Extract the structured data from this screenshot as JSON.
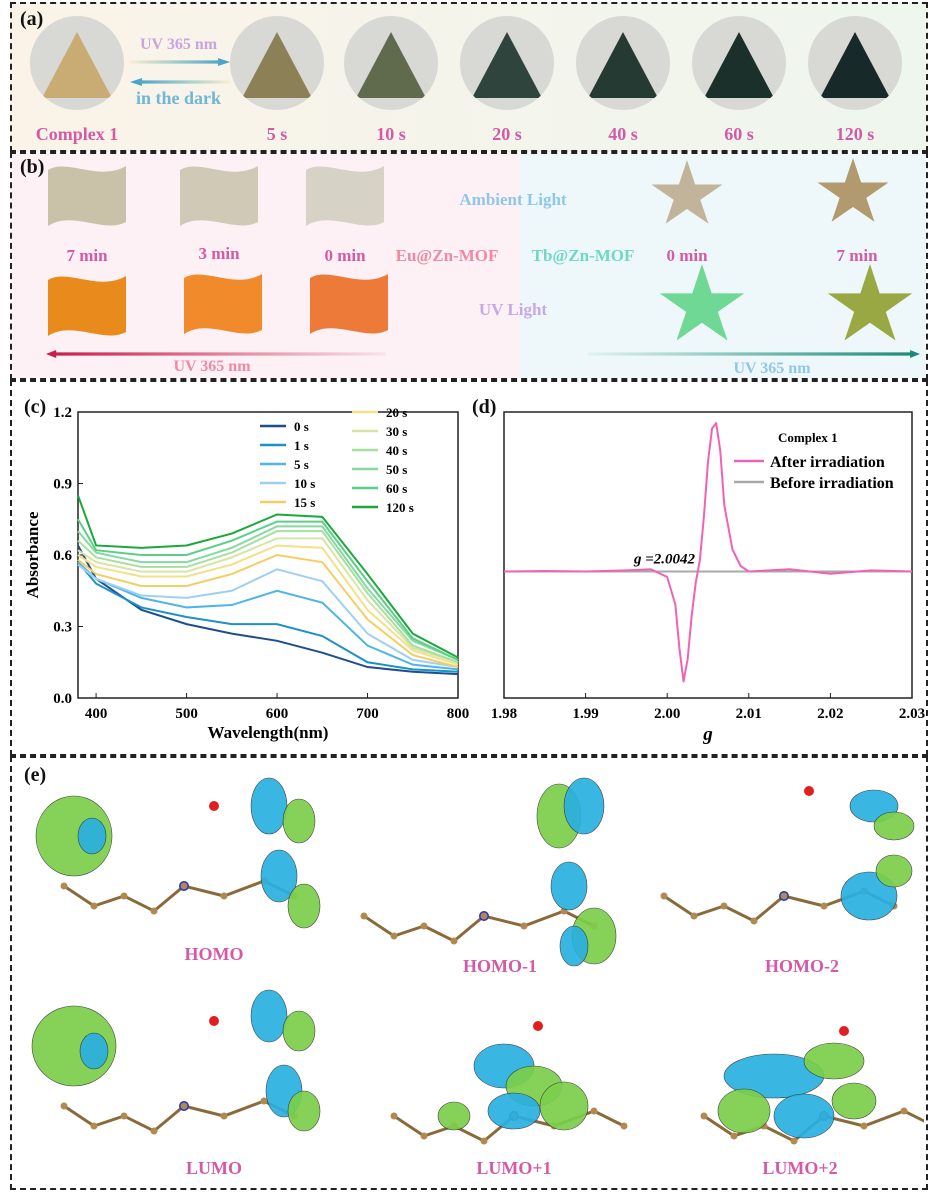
{
  "panel_a": {
    "label": "(a)",
    "arrow_top": "UV 365 nm",
    "arrow_bottom": "in the dark",
    "samples": [
      "Complex 1",
      "5 s",
      "10 s",
      "20 s",
      "40 s",
      "60 s",
      "120 s"
    ],
    "colors": [
      "#c9ab74",
      "#8c8156",
      "#5f6b4c",
      "#2f443c",
      "#263a34",
      "#1c302b",
      "#18292a"
    ]
  },
  "panel_b": {
    "label": "(b)",
    "eu_times_top": [
      "7 min",
      "3 min",
      "0 min"
    ],
    "eu_name": "Eu@Zn-MOF",
    "tb_name": "Tb@Zn-MOF",
    "ambient": "Ambient Light",
    "uv_light": "UV Light",
    "tb_times": [
      "0 min",
      "7 min"
    ],
    "arrow_left": "UV 365 nm",
    "arrow_right": "UV 365 nm"
  },
  "panel_c": {
    "label": "(c)"
  },
  "panel_d": {
    "label": "(d)"
  },
  "panel_e": {
    "label": "(e)",
    "orbitals": [
      "HOMO",
      "HOMO-1",
      "HOMO-2",
      "LUMO",
      "LUMO+1",
      "LUMO+2"
    ]
  },
  "chart_data": [
    {
      "type": "line",
      "xlabel": "Wavelength(nm)",
      "ylabel": "Absorbance",
      "xlim": [
        380,
        800
      ],
      "ylim": [
        0,
        1.2
      ],
      "xticks": [
        400,
        500,
        600,
        700,
        800
      ],
      "yticks": [
        0.0,
        0.3,
        0.6,
        0.9,
        1.2
      ],
      "x": [
        380,
        400,
        450,
        500,
        550,
        600,
        650,
        700,
        750,
        800
      ],
      "series": [
        {
          "name": "0 s",
          "color": "#1f4e8c",
          "values": [
            0.64,
            0.5,
            0.37,
            0.31,
            0.27,
            0.24,
            0.19,
            0.13,
            0.11,
            0.1
          ]
        },
        {
          "name": "1 s",
          "color": "#1e90c8",
          "values": [
            0.57,
            0.48,
            0.38,
            0.34,
            0.31,
            0.31,
            0.26,
            0.15,
            0.12,
            0.11
          ]
        },
        {
          "name": "5 s",
          "color": "#4fb4e6",
          "values": [
            0.57,
            0.5,
            0.42,
            0.38,
            0.39,
            0.45,
            0.4,
            0.22,
            0.14,
            0.12
          ]
        },
        {
          "name": "10 s",
          "color": "#9fd0f0",
          "values": [
            0.56,
            0.5,
            0.43,
            0.42,
            0.45,
            0.54,
            0.49,
            0.27,
            0.16,
            0.13
          ]
        },
        {
          "name": "15 s",
          "color": "#f3cf63",
          "values": [
            0.58,
            0.52,
            0.47,
            0.47,
            0.52,
            0.6,
            0.57,
            0.33,
            0.18,
            0.13
          ]
        },
        {
          "name": "20 s",
          "color": "#f2e08a",
          "values": [
            0.6,
            0.55,
            0.51,
            0.51,
            0.56,
            0.64,
            0.63,
            0.37,
            0.2,
            0.14
          ]
        },
        {
          "name": "30 s",
          "color": "#d6e5a4",
          "values": [
            0.62,
            0.57,
            0.53,
            0.53,
            0.59,
            0.67,
            0.67,
            0.41,
            0.21,
            0.15
          ]
        },
        {
          "name": "40 s",
          "color": "#a8dfa0",
          "values": [
            0.66,
            0.59,
            0.55,
            0.55,
            0.61,
            0.7,
            0.7,
            0.44,
            0.22,
            0.15
          ]
        },
        {
          "name": "50 s",
          "color": "#84d9a0",
          "values": [
            0.7,
            0.61,
            0.57,
            0.57,
            0.63,
            0.72,
            0.72,
            0.46,
            0.24,
            0.16
          ]
        },
        {
          "name": "60 s",
          "color": "#5ccf86",
          "values": [
            0.75,
            0.62,
            0.6,
            0.6,
            0.66,
            0.74,
            0.74,
            0.49,
            0.25,
            0.16
          ]
        },
        {
          "name": "120 s",
          "color": "#19a83a",
          "values": [
            0.85,
            0.64,
            0.63,
            0.64,
            0.69,
            0.77,
            0.76,
            0.52,
            0.27,
            0.17
          ]
        }
      ]
    },
    {
      "type": "line",
      "xlabel": "g",
      "ylabel": "",
      "xlim": [
        1.98,
        2.03
      ],
      "xticks": [
        1.98,
        1.99,
        2.0,
        2.01,
        2.02,
        2.03
      ],
      "legend_title": "Complex 1",
      "annotation": "g =2.0042",
      "series": [
        {
          "name": "After irradiation",
          "color": "#f062b8",
          "x": [
            1.98,
            1.985,
            1.99,
            1.995,
            1.998,
            2.0,
            2.001,
            2.0015,
            2.002,
            2.0025,
            2.003,
            2.0035,
            2.004,
            2.0045,
            2.005,
            2.0055,
            2.006,
            2.0065,
            2.007,
            2.008,
            2.009,
            2.01,
            2.015,
            2.02,
            2.025,
            2.03
          ],
          "values": [
            0.0,
            0.005,
            0.0,
            0.01,
            0.02,
            -0.05,
            -0.3,
            -0.7,
            -1.0,
            -0.8,
            -0.4,
            -0.1,
            0.1,
            0.5,
            1.0,
            1.3,
            1.35,
            1.1,
            0.6,
            0.2,
            0.05,
            0.0,
            0.02,
            -0.02,
            0.01,
            0.0
          ]
        },
        {
          "name": "Before irradiation",
          "color": "#a8a8a8",
          "x": [
            1.98,
            2.03
          ],
          "values": [
            0.0,
            0.0
          ]
        }
      ]
    }
  ]
}
